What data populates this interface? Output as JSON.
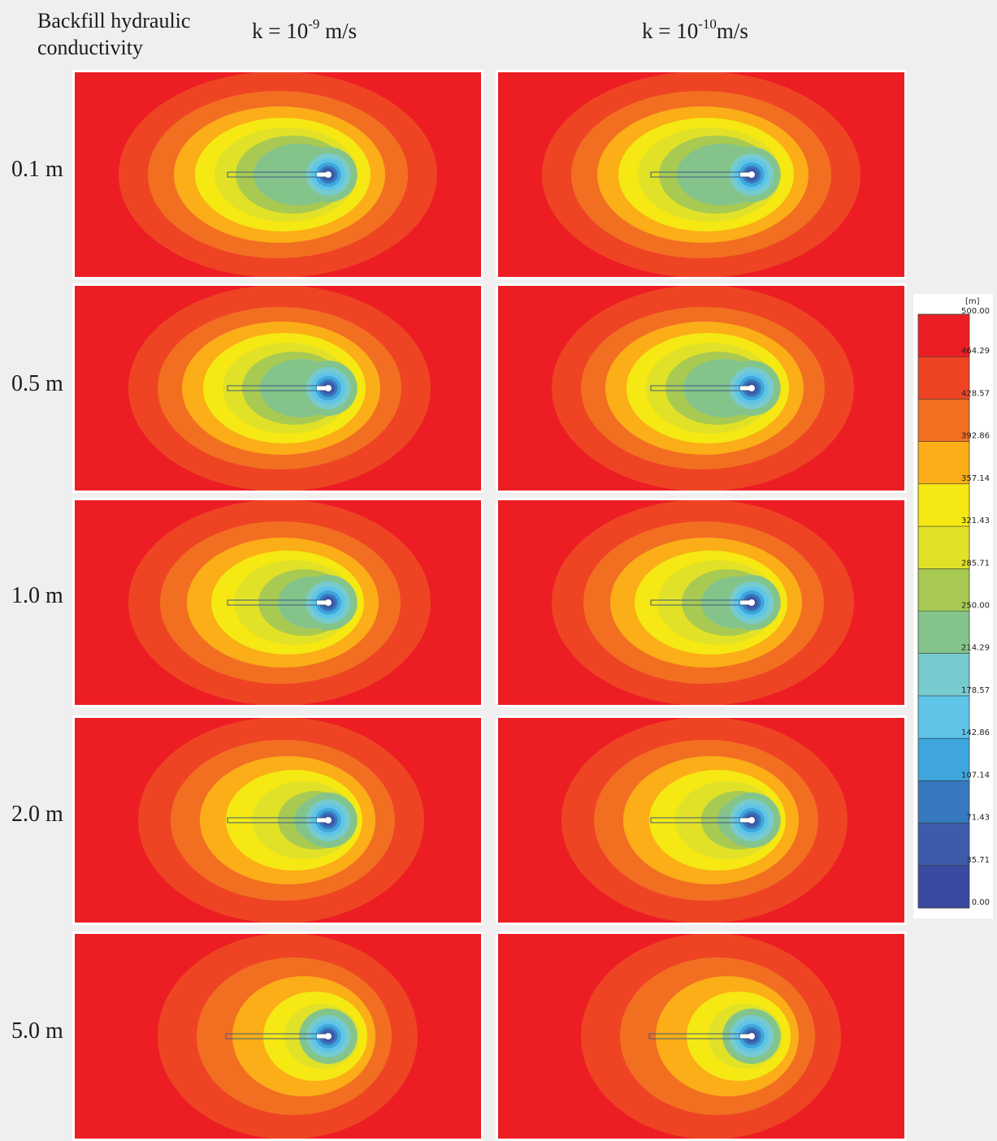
{
  "header": {
    "corner_label": "Backfill hydraulic conductivity",
    "columns": [
      {
        "prefix": "k = 10",
        "exponent": "-9",
        "suffix": " m/s"
      },
      {
        "prefix": "k = 10",
        "exponent": "-10",
        "suffix": "m/s"
      }
    ]
  },
  "rows": [
    "0.1 m",
    "0.5 m",
    "1.0 m",
    "2.0 m",
    "5.0 m"
  ],
  "legend": {
    "unit": "[m]",
    "ticks": [
      "500.00",
      "464.29",
      "428.57",
      "392.86",
      "357.14",
      "321.43",
      "285.71",
      "250.00",
      "214.29",
      "178.57",
      "142.86",
      "107.14",
      "71.43",
      "35.71",
      "0.00"
    ],
    "colors": [
      "#ec1e24",
      "#ee4424",
      "#f26f22",
      "#fbae17",
      "#f5e813",
      "#e1e128",
      "#a8ca52",
      "#84c48b",
      "#77cbce",
      "#5ec5e8",
      "#3ea6dc",
      "#3779bf",
      "#3c5ca9",
      "#3a4aa1"
    ]
  }
}
